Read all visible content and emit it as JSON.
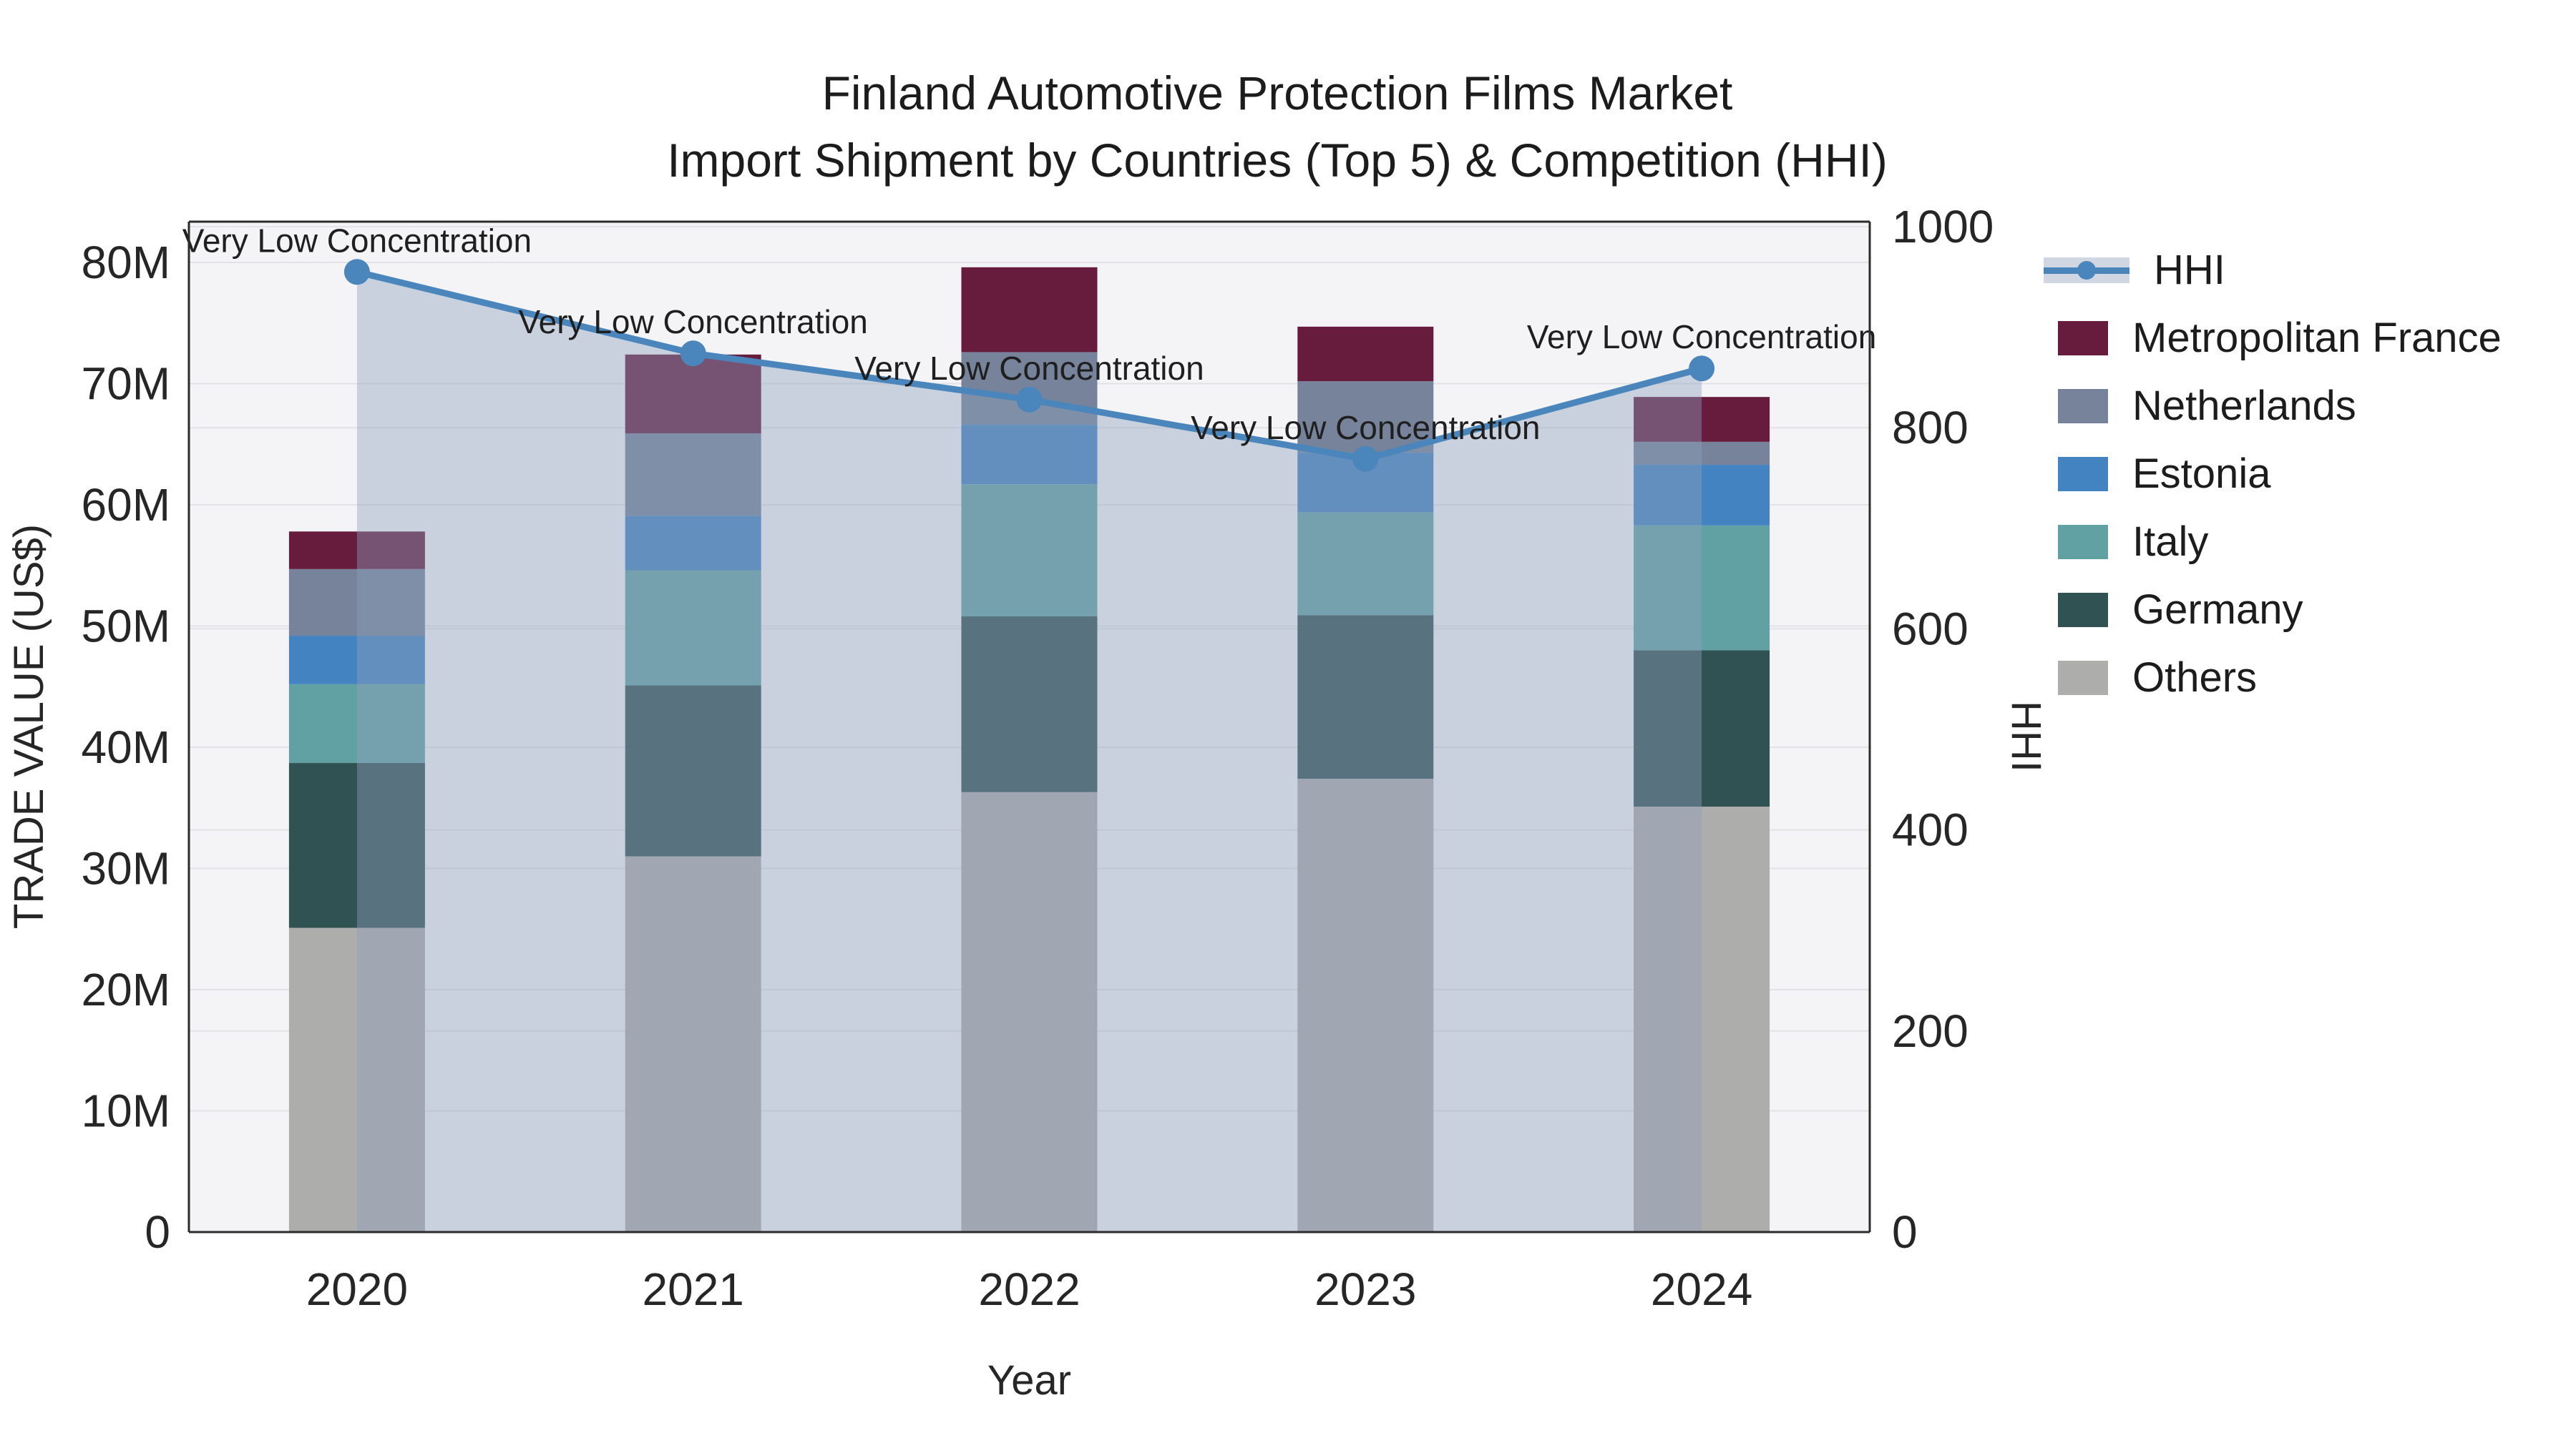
{
  "title": {
    "line1": "Finland Automotive Protection Films Market",
    "line2": "Import Shipment by Countries (Top 5) & Competition (HHI)"
  },
  "axes": {
    "x_label": "Year",
    "left_label": "TRADE VALUE (US$)",
    "right_label": "HHI",
    "left_tick_labels": [
      "0",
      "10M",
      "20M",
      "30M",
      "40M",
      "50M",
      "60M",
      "70M",
      "80M"
    ],
    "left_tick_values": [
      0,
      10,
      20,
      30,
      40,
      50,
      60,
      70,
      80
    ],
    "right_tick_labels": [
      "0",
      "200",
      "400",
      "600",
      "800",
      "1000"
    ],
    "right_tick_values": [
      0,
      200,
      400,
      600,
      800,
      1000
    ]
  },
  "legend": {
    "hhi_label": "HHI",
    "items": [
      "Metropolitan France",
      "Netherlands",
      "Estonia",
      "Italy",
      "Germany",
      "Others"
    ]
  },
  "colors": {
    "metropolitan_france": "#671c3e",
    "netherlands": "#76839a",
    "estonia": "#4483c1",
    "italy": "#62a1a3",
    "germany": "#315253",
    "others": "#adadab",
    "hhi_line": "#4a86bb",
    "hhi_area": "rgba(144,159,188,0.42)",
    "plot_background": "#f4f4f6",
    "gridline": "#e2e2e7",
    "spine": "#2b2b2b",
    "text": "#1f1f1f"
  },
  "chart_data": {
    "type": "bar",
    "subtype": "stacked-bar-with-line-overlay",
    "title": "Finland Automotive Protection Films Market — Import Shipment by Countries (Top 5) & Competition (HHI)",
    "xlabel": "Year",
    "ylabel_left": "TRADE VALUE (US$)",
    "ylabel_right": "HHI",
    "unit": "million US$",
    "categories": [
      "2020",
      "2021",
      "2022",
      "2023",
      "2024"
    ],
    "stack_order_bottom_to_top": [
      "Others",
      "Germany",
      "Italy",
      "Estonia",
      "Netherlands",
      "Metropolitan France"
    ],
    "series": [
      {
        "name": "Metropolitan France",
        "color": "#671c3e",
        "values": [
          3.1,
          6.5,
          7.0,
          4.5,
          3.7
        ]
      },
      {
        "name": "Netherlands",
        "color": "#76839a",
        "values": [
          5.5,
          6.8,
          6.0,
          5.9,
          1.9
        ]
      },
      {
        "name": "Estonia",
        "color": "#4483c1",
        "values": [
          4.0,
          4.5,
          4.9,
          4.9,
          5.0
        ]
      },
      {
        "name": "Italy",
        "color": "#62a1a3",
        "values": [
          6.5,
          9.5,
          10.9,
          8.5,
          10.3
        ]
      },
      {
        "name": "Germany",
        "color": "#315253",
        "values": [
          13.6,
          14.1,
          14.5,
          13.5,
          12.9
        ]
      },
      {
        "name": "Others",
        "color": "#adadab",
        "values": [
          25.1,
          31.0,
          36.3,
          37.4,
          35.1
        ]
      }
    ],
    "bar_totals": [
      57.8,
      72.4,
      79.6,
      74.7,
      68.9
    ],
    "line": {
      "name": "HHI",
      "axis": "right",
      "color": "#4a86bb",
      "area_color": "rgba(144,159,188,0.42)",
      "values": [
        955,
        874,
        828,
        769,
        859
      ],
      "point_annotation": "Very Low Concentration"
    },
    "ylim_left": [
      0,
      83
    ],
    "ylim_right": [
      0,
      1000
    ],
    "grid": true,
    "legend_position": "right"
  }
}
